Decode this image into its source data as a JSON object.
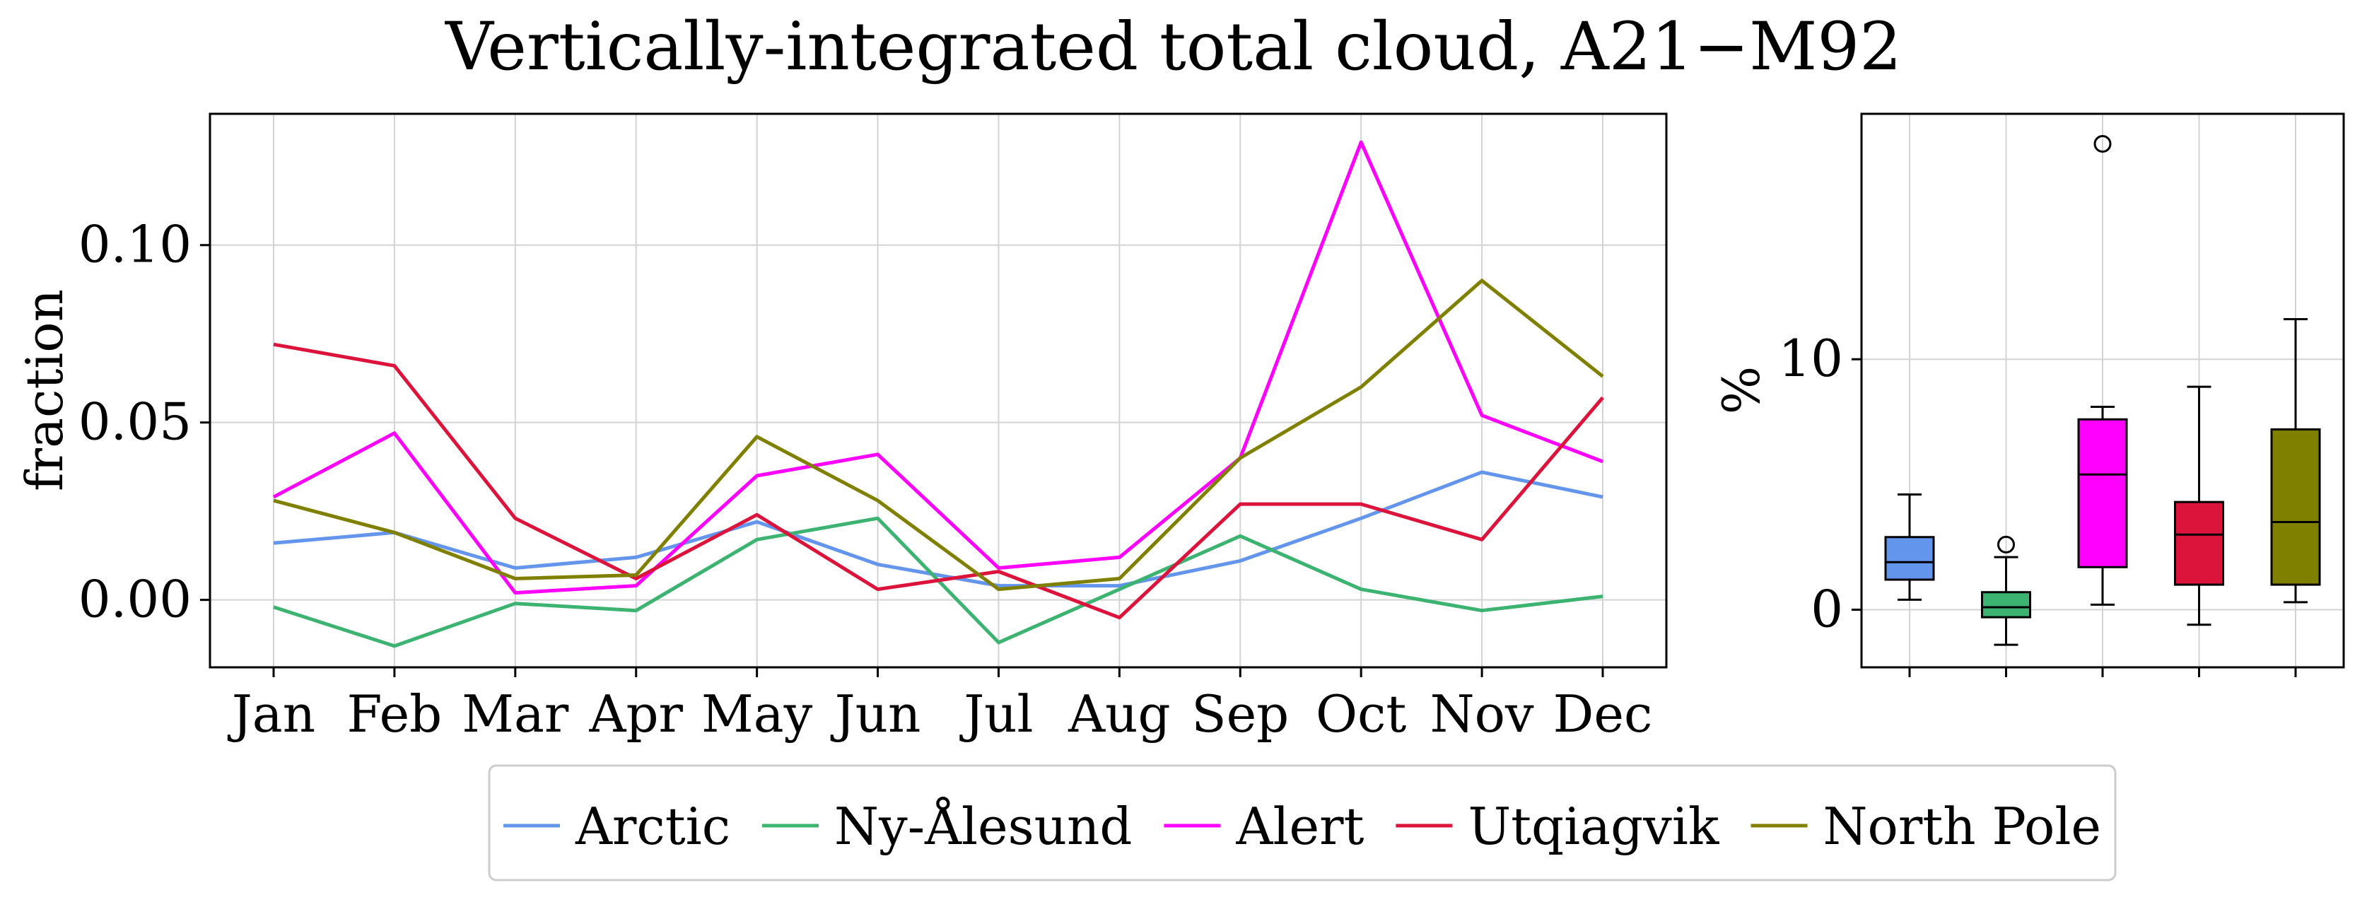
{
  "figure_title": "Vertically-integrated total cloud, A21−M92",
  "colors": {
    "Arctic": "#6495ed",
    "Ny-Ålesund": "#3cb371",
    "Alert": "#ff00ff",
    "Utqiagvik": "#dc143c",
    "North Pole": "#808000"
  },
  "chart_data": [
    {
      "type": "line",
      "ylabel": "fraction",
      "xlabel": "",
      "grid": true,
      "ylim": [
        -0.019,
        0.137
      ],
      "yticks": [
        0.0,
        0.05,
        0.1
      ],
      "ytick_labels": [
        "0.00",
        "0.05",
        "0.10"
      ],
      "categories": [
        "Jan",
        "Feb",
        "Mar",
        "Apr",
        "May",
        "Jun",
        "Jul",
        "Aug",
        "Sep",
        "Oct",
        "Nov",
        "Dec"
      ],
      "legend_position": "below",
      "series": [
        {
          "name": "Arctic",
          "values": [
            0.016,
            0.019,
            0.009,
            0.012,
            0.022,
            0.01,
            0.004,
            0.004,
            0.011,
            0.023,
            0.036,
            0.029
          ]
        },
        {
          "name": "Ny-Ålesund",
          "values": [
            -0.002,
            -0.013,
            -0.001,
            -0.003,
            0.017,
            0.023,
            -0.012,
            0.003,
            0.018,
            0.003,
            -0.003,
            0.001
          ]
        },
        {
          "name": "Alert",
          "values": [
            0.029,
            0.047,
            0.002,
            0.004,
            0.035,
            0.041,
            0.009,
            0.012,
            0.04,
            0.129,
            0.052,
            0.039
          ]
        },
        {
          "name": "Utqiagvik",
          "values": [
            0.072,
            0.066,
            0.023,
            0.006,
            0.024,
            0.003,
            0.008,
            -0.005,
            0.027,
            0.027,
            0.017,
            0.057
          ]
        },
        {
          "name": "North Pole",
          "values": [
            0.028,
            0.019,
            0.006,
            0.007,
            0.046,
            0.028,
            0.003,
            0.006,
            0.04,
            0.06,
            0.09,
            0.063
          ]
        }
      ]
    },
    {
      "type": "box",
      "ylabel": "%",
      "grid": true,
      "ylim": [
        -2.3,
        19.8
      ],
      "yticks": [
        0,
        10
      ],
      "ytick_labels": [
        "0",
        "10"
      ],
      "boxes": [
        {
          "name": "Arctic",
          "whisker_low": 0.4,
          "q1": 1.2,
          "median": 1.9,
          "q3": 2.9,
          "whisker_high": 4.6,
          "outliers": []
        },
        {
          "name": "Ny-Ålesund",
          "whisker_low": -1.4,
          "q1": -0.3,
          "median": 0.1,
          "q3": 0.7,
          "whisker_high": 2.1,
          "outliers": [
            2.6
          ]
        },
        {
          "name": "Alert",
          "whisker_low": 0.2,
          "q1": 1.7,
          "median": 5.4,
          "q3": 7.6,
          "whisker_high": 8.1,
          "outliers": [
            18.6
          ]
        },
        {
          "name": "Utqiagvik",
          "whisker_low": -0.6,
          "q1": 1.0,
          "median": 3.0,
          "q3": 4.3,
          "whisker_high": 8.9,
          "outliers": []
        },
        {
          "name": "North Pole",
          "whisker_low": 0.3,
          "q1": 1.0,
          "median": 3.5,
          "q3": 7.2,
          "whisker_high": 11.6,
          "outliers": []
        }
      ]
    }
  ]
}
